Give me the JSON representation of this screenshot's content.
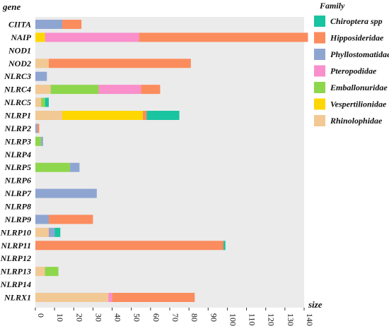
{
  "chart_data": {
    "type": "bar",
    "orientation": "horizontal",
    "stacked": true,
    "ylabel": "gene",
    "xlabel": "size",
    "xlim": [
      0,
      140
    ],
    "xticks": [
      0,
      10,
      20,
      30,
      40,
      50,
      60,
      70,
      80,
      90,
      100,
      110,
      120,
      130,
      140
    ],
    "grid": false,
    "background": "#ebebeb",
    "legend_title": "Family",
    "legend_position": "top-right",
    "categories": [
      "CIITA",
      "NAIP",
      "NOD1",
      "NOD2",
      "NLRC3",
      "NLRC4",
      "NLRC5",
      "NLRP1",
      "NLRP2",
      "NLRP3",
      "NLRP4",
      "NLRP5",
      "NLRP6",
      "NLRP7",
      "NLRP8",
      "NLRP9",
      "NLRP10",
      "NLRP11",
      "NLRP12",
      "NLRP13",
      "NLRP14",
      "NLRX1"
    ],
    "series": [
      {
        "name": "Rhinolophidae",
        "color": "#f2c894",
        "values": [
          0,
          0,
          0,
          7,
          0,
          8,
          3,
          14,
          0,
          0,
          0,
          0,
          0,
          0,
          0,
          0,
          7,
          0,
          0,
          5,
          0,
          38
        ]
      },
      {
        "name": "Vespertilionidae",
        "color": "#ffd700",
        "values": [
          0,
          5,
          0,
          0,
          0,
          0,
          0,
          42,
          0,
          0,
          0,
          0,
          0,
          0,
          0,
          0,
          0,
          0,
          0,
          0,
          0,
          0
        ]
      },
      {
        "name": "Emballonuridae",
        "color": "#8ed64c",
        "values": [
          0,
          0,
          0,
          0,
          0,
          25,
          2,
          0,
          0,
          3,
          0,
          18,
          0,
          0,
          0,
          0,
          0,
          0,
          0,
          7,
          0,
          0
        ]
      },
      {
        "name": "Pteropodidae",
        "color": "#f98fcb",
        "values": [
          0,
          49,
          0,
          0,
          0,
          22,
          0,
          0,
          0,
          0,
          0,
          0,
          0,
          0,
          0,
          0,
          0,
          0,
          0,
          0,
          0,
          2
        ]
      },
      {
        "name": "Phyllostomatidae",
        "color": "#8fa5d1",
        "values": [
          14,
          0,
          0,
          0,
          6,
          0,
          0,
          0,
          1,
          1,
          0,
          5,
          0,
          32,
          0,
          7,
          3,
          0,
          0,
          0,
          0,
          0
        ]
      },
      {
        "name": "Hipposideridae",
        "color": "#fb8c5e",
        "values": [
          10,
          88,
          0,
          74,
          0,
          10,
          0,
          2,
          1,
          0,
          0,
          0,
          0,
          0,
          0,
          23,
          0,
          98,
          0,
          0,
          0,
          43
        ]
      },
      {
        "name": "Chiroptera spp",
        "color": "#19c4a0",
        "values": [
          0,
          0,
          0,
          0,
          0,
          0,
          2,
          17,
          0,
          0,
          0,
          0,
          0,
          0,
          0,
          0,
          3,
          1,
          0,
          0,
          0,
          0
        ]
      }
    ],
    "legend_order": [
      "Chiroptera spp",
      "Hipposideridae",
      "Phyllostomatidae",
      "Pteropodidae",
      "Emballonuridae",
      "Vespertilionidae",
      "Rhinolophidae"
    ]
  }
}
